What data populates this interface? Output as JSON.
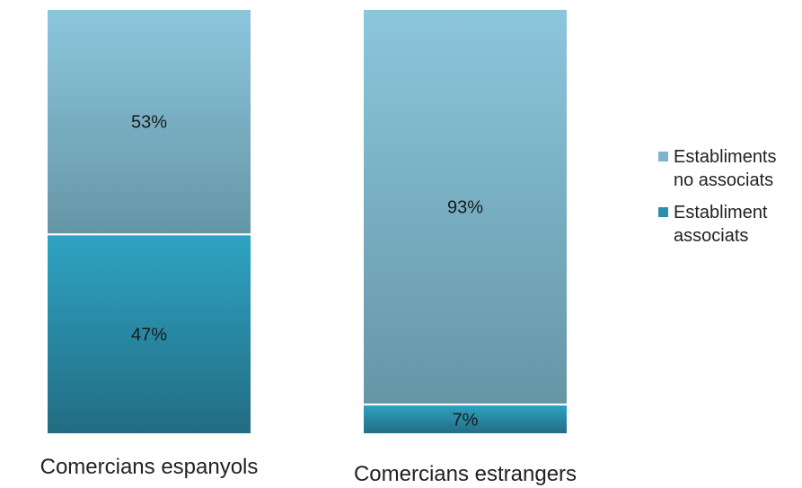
{
  "chart_data": {
    "type": "bar",
    "stacked": true,
    "percent": true,
    "categories": [
      "Comercians espanyols",
      "Comercians estrangers"
    ],
    "series": [
      {
        "name": "Establiment associats",
        "values": [
          47,
          7
        ],
        "labels": [
          "47%",
          "7%"
        ],
        "color": "#2b8fab"
      },
      {
        "name": "Establiments no associats",
        "values": [
          53,
          93
        ],
        "labels": [
          "53%",
          "93%"
        ],
        "color": "#7fb5cc"
      }
    ],
    "ylim": [
      0,
      100
    ],
    "legend_position": "right",
    "grid": false
  },
  "legend": {
    "items": [
      {
        "label_line1": "Establiments",
        "label_line2": "no associats",
        "color": "#7fb5cc"
      },
      {
        "label_line1": "Establiment",
        "label_line2": "associats",
        "color": "#2b8fab"
      }
    ]
  }
}
